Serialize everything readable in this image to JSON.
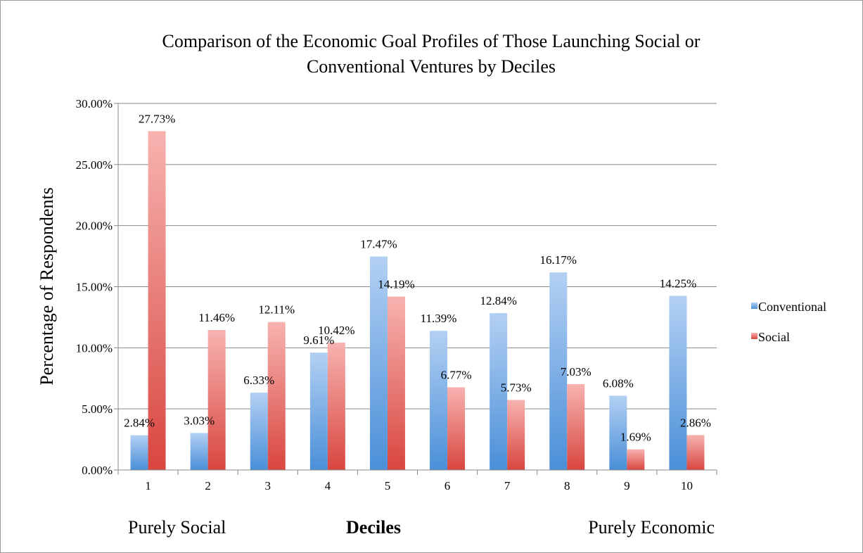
{
  "chart_data": {
    "type": "bar",
    "title_line1": "Comparison of the Economic Goal Profiles of Those Launching Social or",
    "title_line2": "Conventional Ventures by Deciles",
    "xlabel": "Deciles",
    "ylabel": "Percentage of Respondents",
    "left_annotation": "Purely Social",
    "right_annotation": "Purely Economic",
    "categories": [
      "1",
      "2",
      "3",
      "4",
      "5",
      "6",
      "7",
      "8",
      "9",
      "10"
    ],
    "ylim": [
      0,
      30
    ],
    "yticks": [
      0,
      5,
      10,
      15,
      20,
      25,
      30
    ],
    "ytick_labels": [
      "0.00%",
      "5.00%",
      "10.00%",
      "15.00%",
      "20.00%",
      "25.00%",
      "30.00%"
    ],
    "grid": true,
    "legend_position": "right",
    "series": [
      {
        "name": "Conventional",
        "color": "#5b9bd5",
        "values": [
          2.84,
          3.03,
          6.33,
          9.61,
          17.47,
          11.39,
          12.84,
          16.17,
          6.08,
          14.25
        ],
        "labels": [
          "2.84%",
          "3.03%",
          "6.33%",
          "9.61%",
          "17.47%",
          "11.39%",
          "12.84%",
          "16.17%",
          "6.08%",
          "14.25%"
        ]
      },
      {
        "name": "Social",
        "color": "#e05a55",
        "values": [
          27.73,
          11.46,
          12.11,
          10.42,
          14.19,
          6.77,
          5.73,
          7.03,
          1.69,
          2.86
        ],
        "labels": [
          "27.73%",
          "11.46%",
          "12.11%",
          "10.42%",
          "14.19%",
          "6.77%",
          "5.73%",
          "7.03%",
          "1.69%",
          "2.86%"
        ]
      }
    ]
  }
}
